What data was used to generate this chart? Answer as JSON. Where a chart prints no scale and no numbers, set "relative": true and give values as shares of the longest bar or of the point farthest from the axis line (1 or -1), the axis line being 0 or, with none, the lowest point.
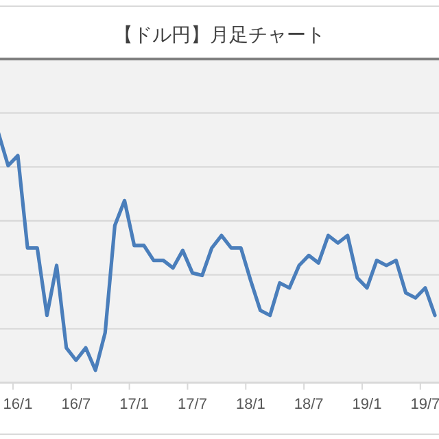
{
  "chart_data": {
    "type": "line",
    "title": "【ドル円】月足チャート",
    "relative": true,
    "grid": "y",
    "marker": "none",
    "line_style": "solid",
    "categories": [
      null,
      null,
      "16/1",
      null,
      null,
      null,
      null,
      null,
      "16/7",
      null,
      null,
      null,
      null,
      null,
      "17/1",
      null,
      null,
      null,
      null,
      null,
      "17/7",
      null,
      null,
      null,
      null,
      null,
      "18/1",
      null,
      null,
      null,
      null,
      null,
      "18/7",
      null,
      null,
      null,
      null,
      null,
      "19/1",
      null,
      null,
      null,
      null,
      null,
      "19/7",
      null
    ],
    "series": [
      {
        "color": "#4a7ebb",
        "values": [
          1.0,
          0.87,
          0.91,
          0.54,
          0.54,
          0.27,
          0.47,
          0.14,
          0.09,
          0.14,
          0.05,
          0.2,
          0.63,
          0.73,
          0.55,
          0.55,
          0.49,
          0.49,
          0.46,
          0.53,
          0.44,
          0.43,
          0.54,
          0.59,
          0.54,
          0.54,
          0.41,
          0.29,
          0.27,
          0.4,
          0.38,
          0.47,
          0.51,
          0.48,
          0.59,
          0.56,
          0.59,
          0.42,
          0.38,
          0.49,
          0.47,
          0.49,
          0.36,
          0.34,
          0.38,
          0.27
        ]
      }
    ]
  }
}
